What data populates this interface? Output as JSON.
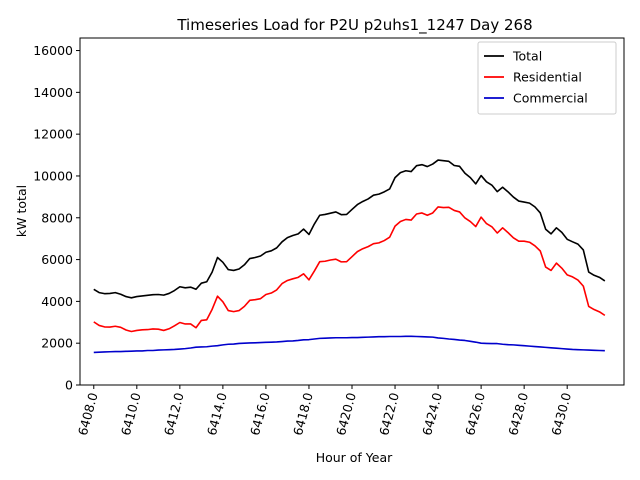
{
  "chart_data": {
    "type": "line",
    "title": "Timeseries Load for P2U p2uhs1_1247  Day 268",
    "xlabel": "Hour of Year",
    "ylabel": "kW total",
    "xlim": [
      6407.36,
      6432.64
    ],
    "ylim": [
      0,
      16600
    ],
    "x_ticks": [
      6408,
      6410,
      6412,
      6414,
      6416,
      6418,
      6420,
      6422,
      6424,
      6426,
      6428,
      6430
    ],
    "x_tick_labels": [
      "6408.0",
      "6410.0",
      "6412.0",
      "6414.0",
      "6416.0",
      "6418.0",
      "6420.0",
      "6422.0",
      "6424.0",
      "6426.0",
      "6428.0",
      "6430.0"
    ],
    "y_ticks": [
      0,
      2000,
      4000,
      6000,
      8000,
      10000,
      12000,
      14000,
      16000
    ],
    "y_tick_labels": [
      "0",
      "2000",
      "4000",
      "6000",
      "8000",
      "10000",
      "12000",
      "14000",
      "16000"
    ],
    "legend_position": "upper right",
    "series": [
      {
        "name": "Total",
        "color": "#000000",
        "x": [
          6408.0,
          6408.25,
          6408.5,
          6408.75,
          6409.0,
          6409.25,
          6409.5,
          6409.75,
          6410.0,
          6410.25,
          6410.5,
          6410.75,
          6411.0,
          6411.25,
          6411.5,
          6411.75,
          6412.0,
          6412.25,
          6412.5,
          6412.75,
          6413.0,
          6413.25,
          6413.5,
          6413.75,
          6414.0,
          6414.25,
          6414.5,
          6414.75,
          6415.0,
          6415.25,
          6415.5,
          6415.75,
          6416.0,
          6416.25,
          6416.5,
          6416.75,
          6417.0,
          6417.25,
          6417.5,
          6417.75,
          6418.0,
          6418.25,
          6418.5,
          6418.75,
          6419.0,
          6419.25,
          6419.5,
          6419.75,
          6420.0,
          6420.25,
          6420.5,
          6420.75,
          6421.0,
          6421.25,
          6421.5,
          6421.75,
          6422.0,
          6422.25,
          6422.5,
          6422.75,
          6423.0,
          6423.25,
          6423.5,
          6423.75,
          6424.0,
          6424.25,
          6424.5,
          6424.75,
          6425.0,
          6425.25,
          6425.5,
          6425.75,
          6426.0,
          6426.25,
          6426.5,
          6426.75,
          6427.0,
          6427.25,
          6427.5,
          6427.75,
          6428.0,
          6428.25,
          6428.5,
          6428.75,
          6429.0,
          6429.25,
          6429.5,
          6429.75,
          6430.0,
          6430.25,
          6430.5,
          6430.75,
          6431.0,
          6431.25,
          6431.5,
          6431.75
        ],
        "values": [
          4580,
          4420,
          4370,
          4380,
          4420,
          4340,
          4230,
          4170,
          4230,
          4260,
          4290,
          4320,
          4330,
          4300,
          4380,
          4520,
          4700,
          4650,
          4680,
          4580,
          4870,
          4940,
          5400,
          6100,
          5870,
          5520,
          5480,
          5550,
          5750,
          6050,
          6100,
          6170,
          6350,
          6420,
          6560,
          6850,
          7050,
          7150,
          7230,
          7460,
          7200,
          7700,
          8120,
          8160,
          8220,
          8280,
          8150,
          8160,
          8400,
          8630,
          8780,
          8900,
          9080,
          9130,
          9240,
          9380,
          9920,
          10160,
          10250,
          10210,
          10490,
          10540,
          10450,
          10570,
          10760,
          10730,
          10700,
          10500,
          10460,
          10130,
          9920,
          9620,
          10020,
          9720,
          9560,
          9250,
          9460,
          9240,
          8990,
          8800,
          8750,
          8700,
          8520,
          8230,
          7450,
          7230,
          7520,
          7300,
          6970,
          6850,
          6740,
          6460,
          5400,
          5250,
          5150,
          4980
        ]
      },
      {
        "name": "Residential",
        "color": "#ff0000",
        "x": [
          6408.0,
          6408.25,
          6408.5,
          6408.75,
          6409.0,
          6409.25,
          6409.5,
          6409.75,
          6410.0,
          6410.25,
          6410.5,
          6410.75,
          6411.0,
          6411.25,
          6411.5,
          6411.75,
          6412.0,
          6412.25,
          6412.5,
          6412.75,
          6413.0,
          6413.25,
          6413.5,
          6413.75,
          6414.0,
          6414.25,
          6414.5,
          6414.75,
          6415.0,
          6415.25,
          6415.5,
          6415.75,
          6416.0,
          6416.25,
          6416.5,
          6416.75,
          6417.0,
          6417.25,
          6417.5,
          6417.75,
          6418.0,
          6418.25,
          6418.5,
          6418.75,
          6419.0,
          6419.25,
          6419.5,
          6419.75,
          6420.0,
          6420.25,
          6420.5,
          6420.75,
          6421.0,
          6421.25,
          6421.5,
          6421.75,
          6422.0,
          6422.25,
          6422.5,
          6422.75,
          6423.0,
          6423.25,
          6423.5,
          6423.75,
          6424.0,
          6424.25,
          6424.5,
          6424.75,
          6425.0,
          6425.25,
          6425.5,
          6425.75,
          6426.0,
          6426.25,
          6426.5,
          6426.75,
          6427.0,
          6427.25,
          6427.5,
          6427.75,
          6428.0,
          6428.25,
          6428.5,
          6428.75,
          6429.0,
          6429.25,
          6429.5,
          6429.75,
          6430.0,
          6430.25,
          6430.5,
          6430.75,
          6431.0,
          6431.25,
          6431.5,
          6431.75
        ],
        "values": [
          3020,
          2850,
          2780,
          2770,
          2810,
          2760,
          2630,
          2560,
          2610,
          2640,
          2650,
          2680,
          2670,
          2610,
          2690,
          2830,
          2990,
          2920,
          2920,
          2740,
          3090,
          3120,
          3620,
          4250,
          3980,
          3560,
          3510,
          3560,
          3760,
          4050,
          4080,
          4130,
          4330,
          4400,
          4550,
          4850,
          5000,
          5080,
          5150,
          5320,
          5030,
          5450,
          5900,
          5920,
          5980,
          6020,
          5890,
          5900,
          6140,
          6380,
          6520,
          6620,
          6760,
          6800,
          6910,
          7070,
          7600,
          7820,
          7920,
          7890,
          8180,
          8230,
          8120,
          8230,
          8520,
          8490,
          8500,
          8350,
          8280,
          7990,
          7820,
          7580,
          8030,
          7720,
          7570,
          7270,
          7520,
          7290,
          7040,
          6880,
          6880,
          6830,
          6660,
          6410,
          5640,
          5480,
          5830,
          5590,
          5270,
          5170,
          5020,
          4730,
          3760,
          3610,
          3500,
          3330
        ]
      },
      {
        "name": "Commercial",
        "color": "#0000cc",
        "x": [
          6408.0,
          6408.25,
          6408.5,
          6408.75,
          6409.0,
          6409.25,
          6409.5,
          6409.75,
          6410.0,
          6410.25,
          6410.5,
          6410.75,
          6411.0,
          6411.25,
          6411.5,
          6411.75,
          6412.0,
          6412.25,
          6412.5,
          6412.75,
          6413.0,
          6413.25,
          6413.5,
          6413.75,
          6414.0,
          6414.25,
          6414.5,
          6414.75,
          6415.0,
          6415.25,
          6415.5,
          6415.75,
          6416.0,
          6416.25,
          6416.5,
          6416.75,
          6417.0,
          6417.25,
          6417.5,
          6417.75,
          6418.0,
          6418.25,
          6418.5,
          6418.75,
          6419.0,
          6419.25,
          6419.5,
          6419.75,
          6420.0,
          6420.25,
          6420.5,
          6420.75,
          6421.0,
          6421.25,
          6421.5,
          6421.75,
          6422.0,
          6422.25,
          6422.5,
          6422.75,
          6423.0,
          6423.25,
          6423.5,
          6423.75,
          6424.0,
          6424.25,
          6424.5,
          6424.75,
          6425.0,
          6425.25,
          6425.5,
          6425.75,
          6426.0,
          6426.25,
          6426.5,
          6426.75,
          6427.0,
          6427.25,
          6427.5,
          6427.75,
          6428.0,
          6428.25,
          6428.5,
          6428.75,
          6429.0,
          6429.25,
          6429.5,
          6429.75,
          6430.0,
          6430.25,
          6430.5,
          6430.75,
          6431.0,
          6431.25,
          6431.5,
          6431.75
        ],
        "values": [
          1560,
          1570,
          1580,
          1590,
          1600,
          1600,
          1610,
          1620,
          1630,
          1630,
          1650,
          1650,
          1670,
          1680,
          1690,
          1700,
          1720,
          1740,
          1770,
          1810,
          1820,
          1830,
          1860,
          1880,
          1920,
          1950,
          1960,
          1990,
          2000,
          2010,
          2020,
          2030,
          2040,
          2050,
          2060,
          2080,
          2100,
          2110,
          2130,
          2160,
          2170,
          2200,
          2230,
          2240,
          2250,
          2260,
          2260,
          2260,
          2270,
          2270,
          2280,
          2290,
          2300,
          2310,
          2310,
          2320,
          2320,
          2320,
          2330,
          2330,
          2320,
          2310,
          2300,
          2290,
          2250,
          2230,
          2200,
          2180,
          2150,
          2130,
          2090,
          2050,
          2000,
          1990,
          1980,
          1980,
          1950,
          1930,
          1920,
          1900,
          1880,
          1860,
          1840,
          1820,
          1800,
          1780,
          1760,
          1740,
          1720,
          1700,
          1690,
          1680,
          1670,
          1660,
          1650,
          1640
        ]
      }
    ]
  }
}
